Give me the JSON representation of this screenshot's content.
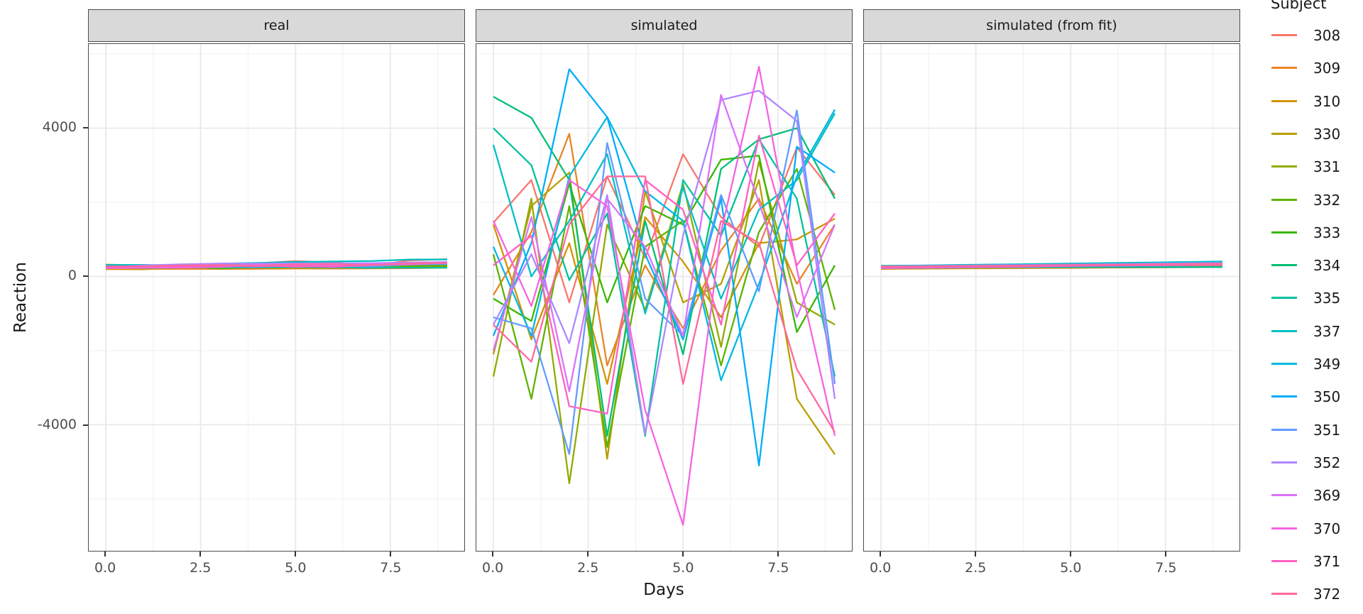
{
  "figure": {
    "y_axis": {
      "title": "Reaction"
    },
    "x_axis": {
      "title": "Days"
    },
    "legend": {
      "title": "Subject"
    }
  },
  "chart_data": {
    "type": "line",
    "x": [
      0,
      1,
      2,
      3,
      4,
      5,
      6,
      7,
      8,
      9
    ],
    "xlabel": "Days",
    "ylabel": "Reaction",
    "xlim": [
      -0.45,
      9.45
    ],
    "ylim": [
      -7400,
      6270
    ],
    "x_ticks": {
      "values": [
        0,
        2.5,
        5,
        7.5
      ],
      "labels": [
        "0.0",
        "2.5",
        "5.0",
        "7.5"
      ]
    },
    "x_minor_ticks": [
      1.25,
      3.75,
      6.25,
      8.75
    ],
    "y_ticks": {
      "values": [
        4000,
        0,
        -4000
      ],
      "labels": [
        "4000",
        "0",
        "-4000"
      ]
    },
    "y_minor_ticks": [
      6000,
      2000,
      -2000,
      -6000
    ],
    "grid": "on",
    "legend_position": "right",
    "legend_title": "Subject",
    "subjects": [
      "308",
      "309",
      "310",
      "330",
      "331",
      "332",
      "333",
      "334",
      "335",
      "337",
      "349",
      "350",
      "351",
      "352",
      "369",
      "370",
      "371",
      "372"
    ],
    "colors": {
      "308": "#F8766D",
      "309": "#E88526",
      "310": "#D39200",
      "330": "#B79F00",
      "331": "#93AA00",
      "332": "#5EB300",
      "333": "#39B600",
      "334": "#00BF74",
      "335": "#00C19F",
      "337": "#00BFC4",
      "349": "#00B9E3",
      "350": "#00ADFA",
      "351": "#619CFF",
      "352": "#AE87FF",
      "369": "#DB72FB",
      "370": "#F564E3",
      "371": "#FF61C3",
      "372": "#FF699C"
    },
    "facets": [
      {
        "label": "real",
        "series": {
          "308": [
            250,
            259,
            251,
            321,
            357,
            415,
            382,
            290,
            431,
            466
          ],
          "309": [
            223,
            205,
            203,
            205,
            207,
            216,
            214,
            217,
            224,
            237
          ],
          "310": [
            199,
            194,
            234,
            233,
            229,
            220,
            235,
            256,
            261,
            248
          ],
          "330": [
            321,
            300,
            283,
            285,
            286,
            298,
            280,
            318,
            305,
            354
          ],
          "331": [
            288,
            285,
            302,
            310,
            284,
            302,
            310,
            331,
            300,
            312
          ],
          "332": [
            234,
            243,
            273,
            213,
            258,
            254,
            303,
            250,
            280,
            290
          ],
          "333": [
            284,
            290,
            277,
            300,
            297,
            338,
            332,
            349,
            333,
            362
          ],
          "334": [
            265,
            276,
            243,
            255,
            279,
            284,
            306,
            332,
            336,
            377
          ],
          "335": [
            242,
            273,
            254,
            271,
            251,
            255,
            245,
            235,
            236,
            237
          ],
          "337": [
            312,
            314,
            292,
            346,
            366,
            392,
            404,
            417,
            456,
            459
          ],
          "349": [
            236,
            230,
            239,
            255,
            251,
            270,
            282,
            308,
            336,
            352
          ],
          "350": [
            256,
            243,
            248,
            284,
            302,
            310,
            346,
            341,
            353,
            371
          ],
          "351": [
            251,
            300,
            270,
            281,
            272,
            305,
            288,
            267,
            322,
            337
          ],
          "352": [
            222,
            298,
            327,
            347,
            349,
            353,
            354,
            360,
            375,
            389
          ],
          "369": [
            272,
            268,
            257,
            278,
            315,
            317,
            298,
            348,
            340,
            367
          ],
          "370": [
            225,
            235,
            238,
            259,
            303,
            263,
            289,
            320,
            328,
            369
          ],
          "371": [
            270,
            272,
            278,
            282,
            279,
            285,
            259,
            305,
            351,
            369
          ],
          "372": [
            269,
            273,
            298,
            311,
            287,
            330,
            335,
            304,
            347,
            365
          ]
        }
      },
      {
        "label": "simulated",
        "series": {
          "308": [
            1450,
            2600,
            -700,
            2700,
            500,
            3300,
            1600,
            800,
            3480,
            2200
          ],
          "309": [
            -500,
            1200,
            3850,
            -2400,
            300,
            -1400,
            700,
            2100,
            -200,
            1400
          ],
          "310": [
            1400,
            -1700,
            900,
            -2900,
            1600,
            400,
            -1100,
            900,
            1000,
            1560
          ],
          "330": [
            -2100,
            1900,
            2800,
            -4920,
            2300,
            -700,
            -200,
            2600,
            -3300,
            -4800
          ],
          "331": [
            -2700,
            2100,
            -5580,
            1400,
            -900,
            2500,
            -1900,
            3100,
            -700,
            -1300
          ],
          "332": [
            600,
            -3300,
            1900,
            -4600,
            800,
            1500,
            -2400,
            1200,
            2900,
            -900
          ],
          "333": [
            -600,
            -1200,
            2500,
            -700,
            1900,
            1400,
            3150,
            3260,
            -1500,
            300
          ],
          "334": [
            4850,
            4280,
            2600,
            -4300,
            1500,
            -2100,
            2900,
            3700,
            4000,
            2100
          ],
          "335": [
            4000,
            3000,
            -100,
            1700,
            -4300,
            2600,
            1100,
            3700,
            2100,
            -2700
          ],
          "337": [
            3550,
            0,
            1500,
            3300,
            -1000,
            2400,
            -600,
            1800,
            2600,
            4400
          ],
          "349": [
            800,
            -1600,
            2700,
            4300,
            2300,
            1500,
            -2800,
            -200,
            2700,
            4500
          ],
          "350": [
            -1600,
            900,
            5590,
            4300,
            600,
            -1700,
            2100,
            -5100,
            3500,
            2800
          ],
          "351": [
            -1100,
            -1400,
            -4790,
            3600,
            -600,
            -1600,
            2200,
            -400,
            4480,
            -2900
          ],
          "352": [
            -1300,
            600,
            -1800,
            2200,
            -4250,
            1100,
            4760,
            5010,
            4200,
            -3300
          ],
          "369": [
            -2000,
            1600,
            -3100,
            2100,
            800,
            -1600,
            4900,
            2000,
            -1100,
            1400
          ],
          "370": [
            1500,
            -800,
            2600,
            1900,
            -3600,
            -6700,
            1200,
            5660,
            200,
            -4300
          ],
          "371": [
            300,
            1100,
            -3500,
            -3700,
            2600,
            1800,
            -1300,
            3800,
            300,
            1700
          ],
          "372": [
            -1300,
            -2300,
            1400,
            2700,
            2700,
            -2900,
            1500,
            900,
            -2500,
            -4200
          ]
        }
      },
      {
        "label": "simulated (from fit)",
        "series": {
          "308": [
            253,
            262,
            271,
            284,
            300,
            322,
            345,
            362,
            380,
            398
          ],
          "309": [
            212,
            214,
            219,
            222,
            228,
            232,
            238,
            243,
            248,
            254
          ],
          "310": [
            205,
            210,
            218,
            226,
            235,
            243,
            252,
            262,
            271,
            280
          ],
          "330": [
            289,
            292,
            296,
            301,
            306,
            312,
            318,
            324,
            331,
            338
          ],
          "331": [
            283,
            287,
            292,
            297,
            303,
            309,
            315,
            322,
            329,
            336
          ],
          "332": [
            260,
            265,
            271,
            277,
            284,
            291,
            298,
            306,
            313,
            321
          ],
          "333": [
            267,
            273,
            280,
            287,
            295,
            303,
            311,
            320,
            329,
            338
          ],
          "334": [
            245,
            253,
            262,
            271,
            281,
            291,
            301,
            312,
            323,
            334
          ],
          "335": [
            260,
            258,
            257,
            256,
            255,
            255,
            254,
            254,
            254,
            255
          ],
          "337": [
            286,
            297,
            309,
            322,
            335,
            348,
            362,
            376,
            390,
            405
          ],
          "349": [
            226,
            234,
            243,
            252,
            262,
            272,
            282,
            293,
            304,
            315
          ],
          "350": [
            238,
            250,
            262,
            275,
            288,
            302,
            316,
            330,
            345,
            360
          ],
          "351": [
            255,
            261,
            268,
            275,
            282,
            290,
            297,
            305,
            313,
            321
          ],
          "352": [
            272,
            281,
            291,
            301,
            311,
            322,
            333,
            344,
            355,
            367
          ],
          "369": [
            256,
            263,
            271,
            279,
            287,
            296,
            305,
            314,
            323,
            333
          ],
          "370": [
            226,
            237,
            248,
            260,
            272,
            285,
            298,
            311,
            325,
            339
          ],
          "371": [
            252,
            258,
            264,
            271,
            278,
            285,
            292,
            300,
            308,
            316
          ],
          "372": [
            262,
            270,
            278,
            287,
            296,
            305,
            314,
            324,
            334,
            344
          ]
        }
      }
    ]
  }
}
